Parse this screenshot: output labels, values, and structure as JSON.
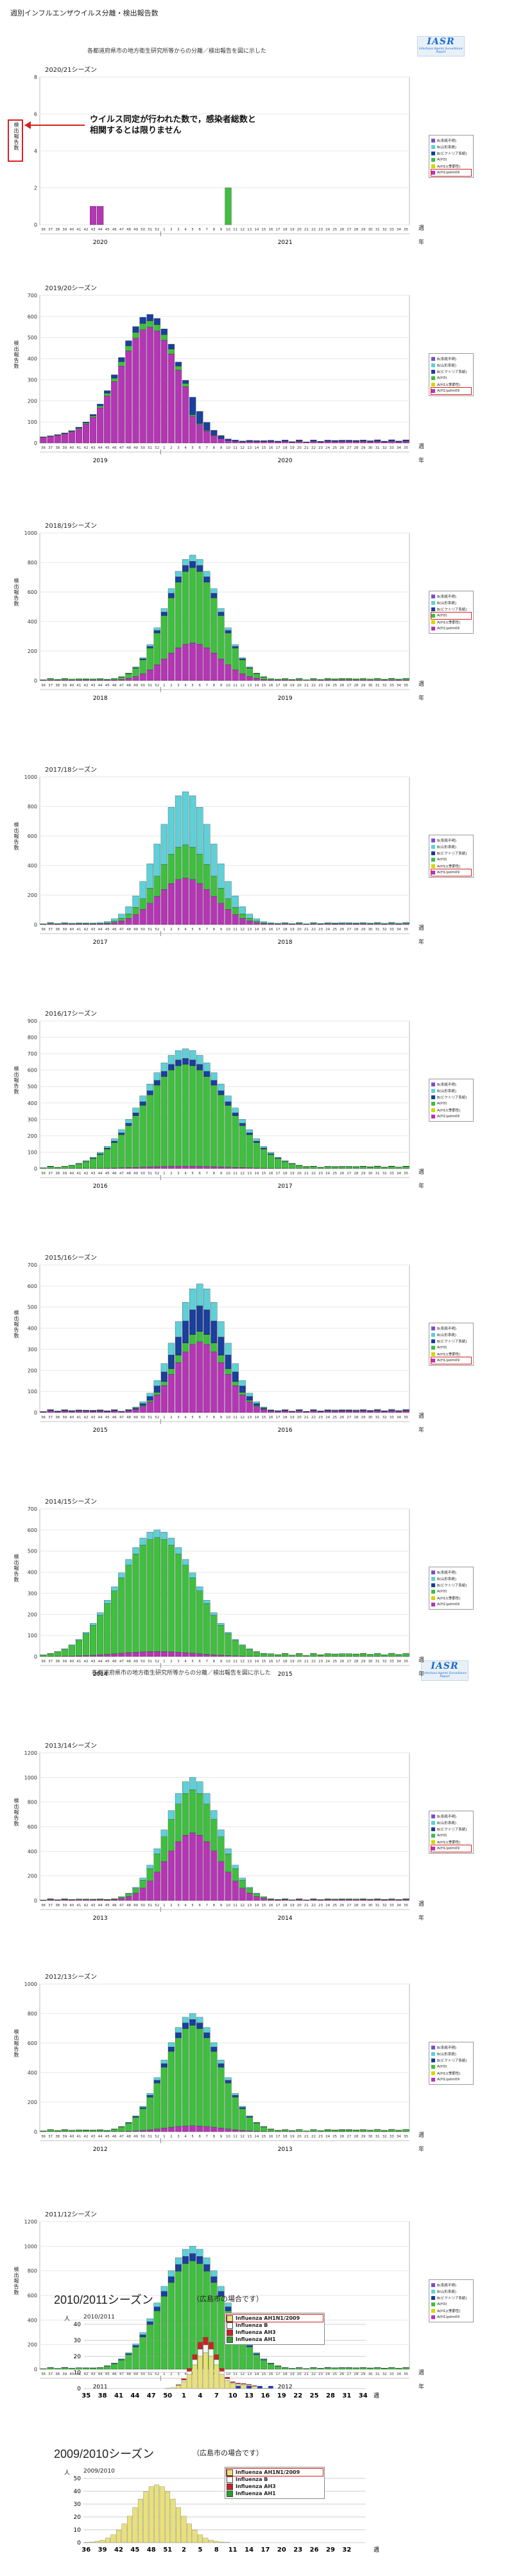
{
  "page_title": "週別インフルエンザウイルス分離・検出報告数",
  "subhead": "各都道府県市の地方衛生研究所等からの分離／検出報告を図に示した",
  "iasr_logo": {
    "text": "IASR",
    "sub": "Infectious Agents Surveillance Report"
  },
  "annotation": {
    "line1": "ウイルス同定が行われた数で，感染者総数と",
    "line2": "相関するとは限りません"
  },
  "y_label": "検出報告数",
  "week_unit": "週",
  "year_unit": "年",
  "colors": {
    "B_unknown": "#7b4fc8",
    "B_yamagata": "#5fd0d8",
    "B_victoria": "#1a3f9c",
    "AH3": "#3fbf3f",
    "AH1": "#d6d600",
    "AH1pdm": "#b536b5",
    "hl": "#d62020"
  },
  "legend_labels": [
    "B(系統不明)",
    "B(山形系統)",
    "B(ビクトリア系統)",
    "A(H3)",
    "A(H1)(季節性)",
    "A(H1)pdm09"
  ],
  "charts": [
    {
      "season": "2020/21シーズン",
      "ymax": 8,
      "yticks": [
        0,
        2,
        4,
        6,
        8
      ],
      "years": [
        "2020",
        "2021"
      ],
      "hl": 5
    },
    {
      "season": "2019/20シーズン",
      "ymax": 700,
      "yticks": [
        0,
        100,
        200,
        300,
        400,
        500,
        600,
        700
      ],
      "years": [
        "2019",
        "2020"
      ],
      "hl": 5
    },
    {
      "season": "2018/19シーズン",
      "ymax": 1000,
      "yticks": [
        0,
        200,
        400,
        600,
        800,
        1000
      ],
      "years": [
        "2018",
        "2019"
      ],
      "hl": 3
    },
    {
      "season": "2017/18シーズン",
      "ymax": 1000,
      "yticks": [
        0,
        200,
        400,
        600,
        800,
        1000
      ],
      "years": [
        "2017",
        "2018"
      ],
      "hl": 5
    },
    {
      "season": "2016/17シーズン",
      "ymax": 900,
      "yticks": [
        0,
        100,
        200,
        300,
        400,
        500,
        600,
        700,
        800,
        900
      ],
      "years": [
        "2016",
        "2017"
      ],
      "hl": -1
    },
    {
      "season": "2015/16シーズン",
      "ymax": 700,
      "yticks": [
        0,
        100,
        200,
        300,
        400,
        500,
        600,
        700
      ],
      "years": [
        "2015",
        "2016"
      ],
      "hl": 5
    },
    {
      "season": "2014/15シーズン",
      "ymax": 700,
      "yticks": [
        0,
        100,
        200,
        300,
        400,
        500,
        600,
        700
      ],
      "years": [
        "2014",
        "2015"
      ],
      "hl": -1
    },
    {
      "season": "2013/14シーズン",
      "ymax": 1200,
      "yticks": [
        0,
        200,
        400,
        600,
        800,
        1000,
        1200
      ],
      "years": [
        "2013",
        "2014"
      ],
      "hl": 5
    },
    {
      "season": "2012/13シーズン",
      "ymax": 1000,
      "yticks": [
        0,
        200,
        400,
        600,
        800,
        1000
      ],
      "years": [
        "2012",
        "2013"
      ],
      "hl": -1
    },
    {
      "season": "2011/12シーズン",
      "ymax": 1200,
      "yticks": [
        0,
        200,
        400,
        600,
        800,
        1000,
        1200
      ],
      "years": [
        "2011",
        "2012"
      ],
      "hl": -1
    }
  ],
  "hiroshima": [
    {
      "title": "2010/2011シーズン",
      "note": "（広島市の場合です）",
      "inner": "2010/2011",
      "unit": "人",
      "ymax": 40,
      "yticks": [
        0,
        10,
        20,
        30,
        40
      ],
      "legend": [
        "Influenza AH1N1/2009",
        "Influenza B",
        "Influenza AH3",
        "Influenza AH1"
      ],
      "xlabels": [
        "35",
        "38",
        "41",
        "44",
        "47",
        "50",
        "1",
        "4",
        "7",
        "10",
        "13",
        "16",
        "19",
        "22",
        "25",
        "28",
        "31",
        "34"
      ]
    },
    {
      "title": "2009/2010シーズン",
      "note": "（広島市の場合です）",
      "inner": "2009/2010",
      "unit": "人",
      "ymax": 50,
      "yticks": [
        0,
        10,
        20,
        30,
        40,
        50
      ],
      "legend": [
        "Influenza AH1N1/2009",
        "Influenza B",
        "Influenza AH3",
        "Influenza AH1"
      ],
      "xlabels": [
        "36",
        "39",
        "42",
        "45",
        "48",
        "51",
        "2",
        "5",
        "8",
        "11",
        "14",
        "17",
        "20",
        "23",
        "26",
        "29",
        "32"
      ]
    }
  ],
  "chart_data": [
    {
      "type": "bar",
      "title": "2020/21シーズン",
      "stacked": true,
      "ylim": [
        0,
        8
      ],
      "series": [
        {
          "name": "A(H3)",
          "values": {
            "week46": 0,
            "week10": 2
          }
        },
        {
          "name": "A(H1)pdm09",
          "values": {
            "week43": 1,
            "week44": 1
          }
        }
      ]
    },
    {
      "type": "bar",
      "title": "2019/20シーズン",
      "stacked": true,
      "ylim": [
        0,
        700
      ],
      "peak_week": "51",
      "peak_total": 600
    },
    {
      "type": "bar",
      "title": "2018/19シーズン",
      "stacked": true,
      "ylim": [
        0,
        1000
      ],
      "peak_week": "4",
      "peak_total": 850
    },
    {
      "type": "bar",
      "title": "2017/18シーズン",
      "stacked": true,
      "ylim": [
        0,
        1000
      ],
      "peak_week": "3",
      "peak_total": 900
    },
    {
      "type": "bar",
      "title": "2016/17シーズン",
      "stacked": true,
      "ylim": [
        0,
        900
      ],
      "peak_week": "3",
      "peak_total": 730
    },
    {
      "type": "bar",
      "title": "2015/16シーズン",
      "stacked": true,
      "ylim": [
        0,
        700
      ],
      "peak_week": "5",
      "peak_total": 610
    },
    {
      "type": "bar",
      "title": "2014/15シーズン",
      "stacked": true,
      "ylim": [
        0,
        700
      ],
      "peak_week": "51",
      "peak_total": 600
    },
    {
      "type": "bar",
      "title": "2013/14シーズン",
      "stacked": true,
      "ylim": [
        0,
        1200
      ],
      "peak_week": "4",
      "peak_total": 1000
    },
    {
      "type": "bar",
      "title": "2012/13シーズン",
      "stacked": true,
      "ylim": [
        0,
        1000
      ],
      "peak_week": "4",
      "peak_total": 800
    },
    {
      "type": "bar",
      "title": "2011/12シーズン",
      "stacked": true,
      "ylim": [
        0,
        1200
      ],
      "peak_week": "4",
      "peak_total": 1000
    },
    {
      "type": "bar",
      "title": "2010/2011",
      "stacked": true,
      "ylim": [
        0,
        40
      ],
      "peak_week": "2",
      "peak_total": 32
    },
    {
      "type": "bar",
      "title": "2009/2010",
      "stacked": true,
      "ylim": [
        0,
        50
      ],
      "peak_week": "45",
      "peak_total": 45
    }
  ]
}
